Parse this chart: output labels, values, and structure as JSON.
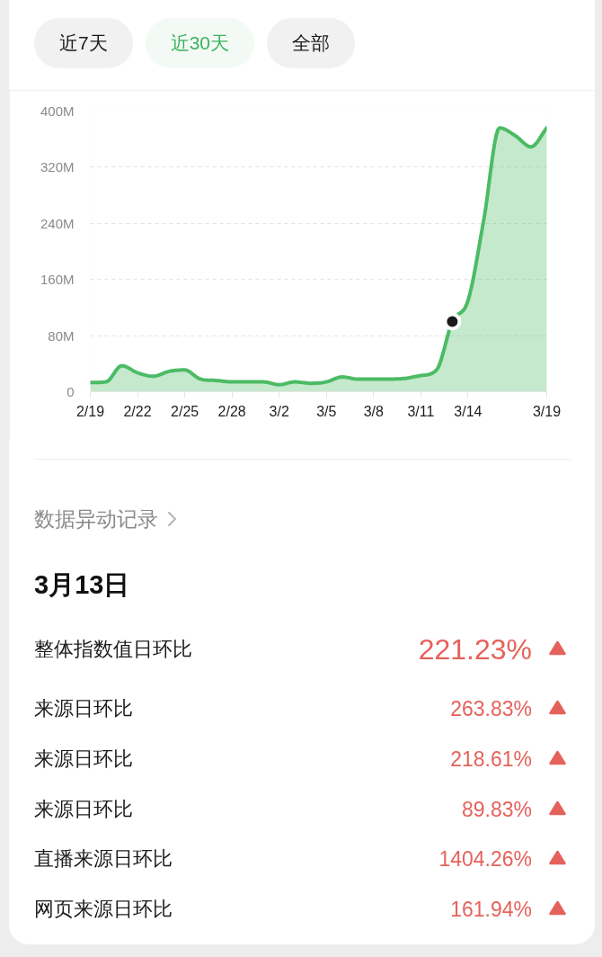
{
  "chart_data": [
    {
      "type": "other",
      "annotations": [
        "近7天",
        "近30天",
        "全部"
      ],
      "colors": [
        "#1a1a1a",
        "#3cb35f",
        "#1a1a1a"
      ]
    },
    {
      "type": "area",
      "categories": [
        "2/19",
        null,
        null,
        "2/22",
        null,
        null,
        "2/25",
        null,
        null,
        "2/28",
        null,
        null,
        "3/2",
        null,
        null,
        "3/5",
        null,
        null,
        "3/8",
        null,
        null,
        "3/11",
        null,
        null,
        "3/14",
        null,
        null,
        null,
        null,
        "3/19"
      ],
      "series": [
        {
          "type": "area",
          "color": "#4cbb65",
          "values": [
            13000000,
            14000000,
            37000000,
            27000000,
            22000000,
            29000000,
            31000000,
            18000000,
            16000000,
            14000000,
            14000000,
            14000000,
            10000000,
            14000000,
            12000000,
            14000000,
            21000000,
            18000000,
            18000000,
            18000000,
            19000000,
            23000000,
            31000000,
            100000000,
            130000000,
            245000000,
            376000000,
            365000000,
            349000000,
            376000000
          ]
        },
        {
          "type": "scatter",
          "color": "#1a1a1a",
          "marker": "circle",
          "values": [
            null,
            null,
            null,
            null,
            null,
            null,
            null,
            null,
            null,
            null,
            null,
            null,
            null,
            null,
            null,
            null,
            null,
            null,
            null,
            null,
            null,
            null,
            null,
            100000000,
            null,
            null,
            null,
            null,
            null,
            null
          ]
        }
      ],
      "ylim": [
        0,
        400000000
      ],
      "yticks": [
        0,
        {
          "value": 80000000,
          "label": "80M"
        },
        {
          "value": 160000000,
          "label": "160M"
        },
        {
          "value": 240000000,
          "label": "240M"
        },
        {
          "value": 320000000,
          "label": "320M"
        },
        {
          "value": 400000000,
          "label": "400M"
        }
      ],
      "grid": "y"
    },
    {
      "type": "other",
      "title": "数据异动记录",
      "subtitle": "3月13日",
      "annotations": [
        "整体指数值日环比",
        "221.23%",
        "来源日环比",
        "263.83%",
        "来源日环比",
        "218.61%",
        "来源日环比",
        "89.83%",
        "直播来源日环比",
        "1404.26%",
        "网页来源日环比",
        "161.94%"
      ]
    }
  ]
}
